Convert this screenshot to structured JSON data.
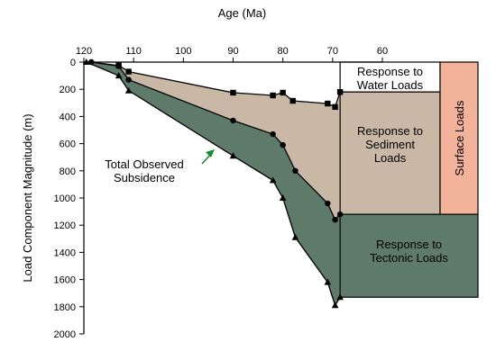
{
  "chart_data": {
    "type": "area",
    "xlabel": "Age (Ma)",
    "ylabel": "Load Component Magnitude (m)",
    "xlim": [
      120,
      60
    ],
    "ylim": [
      0,
      2000
    ],
    "x_ticks": [
      120,
      110,
      100,
      90,
      80,
      70,
      60
    ],
    "y_ticks": [
      0,
      200,
      400,
      600,
      800,
      1000,
      1200,
      1400,
      1600,
      1800,
      2000
    ],
    "colors": {
      "water": "#ffffff",
      "sediment": "#c9b8a6",
      "tectonic": "#5e7a68",
      "surface": "#f3b39b",
      "arrow": "#1a8a2e"
    },
    "series": [
      {
        "marker": "circle",
        "points": [
          [
            118.5,
            0
          ],
          [
            113,
            30
          ],
          [
            111,
            130
          ],
          [
            90,
            430
          ],
          [
            82,
            530
          ],
          [
            80,
            610
          ],
          [
            77.5,
            800
          ],
          [
            71,
            1040
          ],
          [
            69.5,
            1160
          ],
          [
            68.5,
            1120
          ]
        ]
      },
      {
        "marker": "square",
        "points": [
          [
            118.5,
            0
          ],
          [
            113,
            25
          ],
          [
            111,
            70
          ],
          [
            90,
            225
          ],
          [
            82,
            245
          ],
          [
            80,
            225
          ],
          [
            78,
            285
          ],
          [
            71,
            305
          ],
          [
            69.5,
            330
          ],
          [
            68.5,
            220
          ]
        ]
      },
      {
        "marker": "triangle",
        "points": [
          [
            119.5,
            0
          ],
          [
            113,
            100
          ],
          [
            111,
            210
          ],
          [
            90,
            690
          ],
          [
            82,
            870
          ],
          [
            80,
            1000
          ],
          [
            77.5,
            1290
          ],
          [
            71,
            1620
          ],
          [
            69.5,
            1790
          ],
          [
            68.5,
            1730
          ]
        ]
      }
    ],
    "annotations": {
      "water_loads": "Response to\nWater Loads",
      "sediment_loads": "Response to\nSediment\nLoads",
      "surface_loads": "Surface Loads",
      "tectonic_loads": "Response to\nTectonic Loads",
      "total_subsidence": "Total Observed\nSubsidence"
    }
  }
}
